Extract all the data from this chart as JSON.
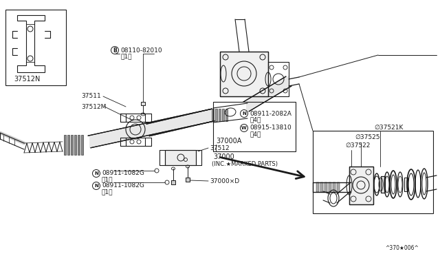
{
  "bg_color": "#ffffff",
  "line_color": "#1a1a1a",
  "text_color": "#1a1a1a",
  "page_id": "^370*006^",
  "figsize": [
    6.4,
    3.72
  ],
  "dpi": 100,
  "labels": {
    "bolt_b_label": "08110-82010",
    "bolt_b_sub": "（1）",
    "part_37511": "37511",
    "part_37512M": "37512M",
    "part_37512N": "37512N",
    "part_37000A": "37000A",
    "part_N08911_2082A": "08911-2082A",
    "part_N08911_2082A_sub": "（4）",
    "part_W08915_13810": "08915-13810",
    "part_W08915_13810_sub": "（4）",
    "part_37000": "37000",
    "part_37000_sub": "(INC.★MARKED PARTS)",
    "part_37512": "37512",
    "part_N08911_1082G": "08911-1082G",
    "part_sub1": "（1）",
    "part_37000D": "37000×D",
    "part_37521K": "∅37521K",
    "part_37525": "∅37525",
    "part_37522": "∅37522",
    "page_code": "^370★006^"
  }
}
